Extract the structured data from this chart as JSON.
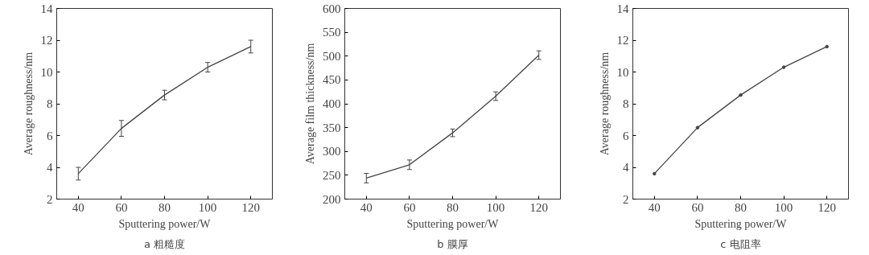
{
  "chart_data": [
    {
      "type": "line",
      "title": "a 粗糙度",
      "xlabel": "Sputtering power/W",
      "ylabel": "Average roughness/nm",
      "x": [
        40,
        60,
        80,
        100,
        120
      ],
      "series": [
        {
          "color": "#444444",
          "values": [
            3.6,
            6.45,
            8.55,
            10.3,
            11.6
          ],
          "errors": [
            0.4,
            0.5,
            0.3,
            0.3,
            0.4
          ]
        }
      ],
      "xlim": [
        30,
        130
      ],
      "xticks": [
        40,
        60,
        80,
        100,
        120
      ],
      "ylim": [
        2,
        14
      ],
      "yticks": [
        2,
        4,
        6,
        8,
        10,
        12,
        14
      ],
      "grid": false,
      "marker": "none",
      "line_style": "solid"
    },
    {
      "type": "line",
      "title": "b 膜厚",
      "xlabel": "Sputtering power/W",
      "ylabel": "Average film thickness/nm",
      "x": [
        40,
        60,
        80,
        100,
        120
      ],
      "series": [
        {
          "color": "#444444",
          "values": [
            244,
            272,
            339,
            416,
            502
          ],
          "errors": [
            10,
            10,
            8,
            9,
            9
          ]
        }
      ],
      "xlim": [
        30,
        130
      ],
      "xticks": [
        40,
        60,
        80,
        100,
        120
      ],
      "ylim": [
        200,
        600
      ],
      "yticks": [
        200,
        250,
        300,
        350,
        400,
        450,
        500,
        550,
        600
      ],
      "grid": false,
      "marker": "none",
      "line_style": "solid"
    },
    {
      "type": "line",
      "title": "c 电阻率",
      "xlabel": "Sputtering power/W",
      "ylabel": "Average roughness/nm",
      "x": [
        40,
        60,
        80,
        100,
        120
      ],
      "series": [
        {
          "color": "#444444",
          "values": [
            3.6,
            6.5,
            8.55,
            10.3,
            11.6
          ]
        }
      ],
      "xlim": [
        30,
        130
      ],
      "xticks": [
        40,
        60,
        80,
        100,
        120
      ],
      "ylim": [
        2,
        14
      ],
      "yticks": [
        2,
        4,
        6,
        8,
        10,
        12,
        14
      ],
      "grid": false,
      "marker": "circle",
      "line_style": "solid"
    }
  ]
}
